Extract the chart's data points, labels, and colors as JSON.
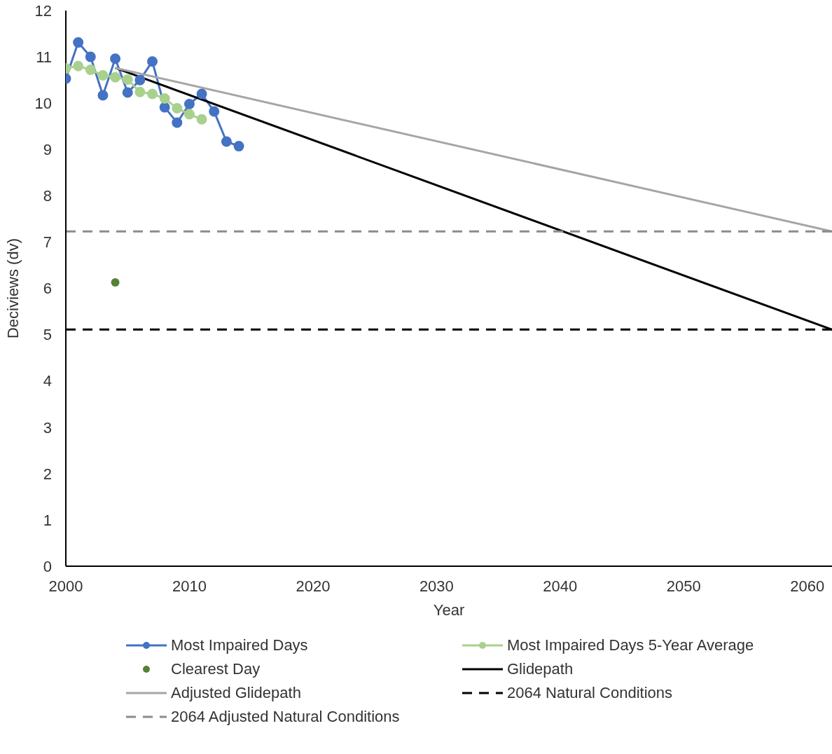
{
  "chart_data": {
    "type": "line",
    "xlabel": "Year",
    "ylabel": "Deciviews (dv)",
    "xlim": [
      2000,
      2062
    ],
    "xticks": [
      2000,
      2010,
      2020,
      2030,
      2040,
      2050,
      2060
    ],
    "ylim": [
      0,
      12
    ],
    "yticks": [
      0,
      1,
      2,
      3,
      4,
      5,
      6,
      7,
      8,
      9,
      10,
      11,
      12
    ],
    "grid": false,
    "legend": "bottom",
    "marker": "circle",
    "line_style": "solid",
    "series": [
      {
        "name": "Most Impaired Days",
        "color": "#4472c4",
        "x": [
          2000,
          2001,
          2002,
          2003,
          2004,
          2005,
          2006,
          2007,
          2008,
          2009,
          2010,
          2011,
          2012,
          2013,
          2014
        ],
        "values": [
          10.53,
          11.31,
          11.0,
          10.17,
          10.96,
          10.23,
          10.5,
          10.9,
          9.91,
          9.58,
          9.98,
          10.2,
          9.82,
          9.17,
          9.07
        ]
      },
      {
        "name": "Most Impaired Days 5-Year Average",
        "color": "#a9d18e",
        "x": [
          2000,
          2001,
          2002,
          2003,
          2004,
          2005,
          2006,
          2007,
          2008,
          2009,
          2010,
          2011
        ],
        "values": [
          10.75,
          10.8,
          10.72,
          10.6,
          10.56,
          10.51,
          10.24,
          10.2,
          10.1,
          9.89,
          9.76,
          9.65
        ]
      },
      {
        "name": "Clearest Day",
        "type": "scatter",
        "color": "#548235",
        "x": [
          2004
        ],
        "values": [
          6.13
        ]
      },
      {
        "name": "Glidepath",
        "color": "#000000",
        "marker": "none",
        "x": [
          2004,
          2062
        ],
        "values": [
          10.76,
          5.11
        ]
      },
      {
        "name": "Adjusted Glidepath",
        "color": "#a5a5a5",
        "marker": "none",
        "x": [
          2004,
          2062
        ],
        "values": [
          10.76,
          7.23
        ]
      },
      {
        "name": "2064 Natural Conditions",
        "color": "#000000",
        "marker": "none",
        "line_style": "dashed",
        "x": [
          2000,
          2062
        ],
        "values": [
          5.11,
          5.11
        ]
      },
      {
        "name": "2064 Adjusted Natural Conditions",
        "color": "#8c8c8c",
        "marker": "none",
        "line_style": "dashed",
        "x": [
          2000,
          2062
        ],
        "values": [
          7.23,
          7.23
        ]
      }
    ]
  }
}
